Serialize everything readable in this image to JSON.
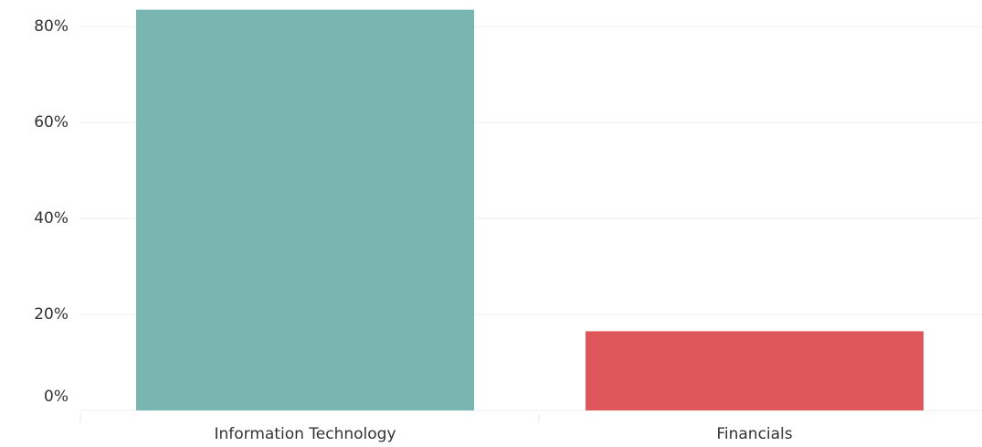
{
  "chart_data": {
    "type": "bar",
    "categories": [
      "Information Technology",
      "Financials"
    ],
    "values": [
      83.5,
      16.5
    ],
    "colors": [
      "#79b6b1",
      "#e0575b"
    ],
    "ylim": [
      0,
      85
    ],
    "yticks": [
      {
        "value": 0,
        "label": "0%"
      },
      {
        "value": 20,
        "label": "20%"
      },
      {
        "value": 40,
        "label": "40%"
      },
      {
        "value": 60,
        "label": "60%"
      },
      {
        "value": 80,
        "label": "80%"
      }
    ],
    "grid": true
  }
}
